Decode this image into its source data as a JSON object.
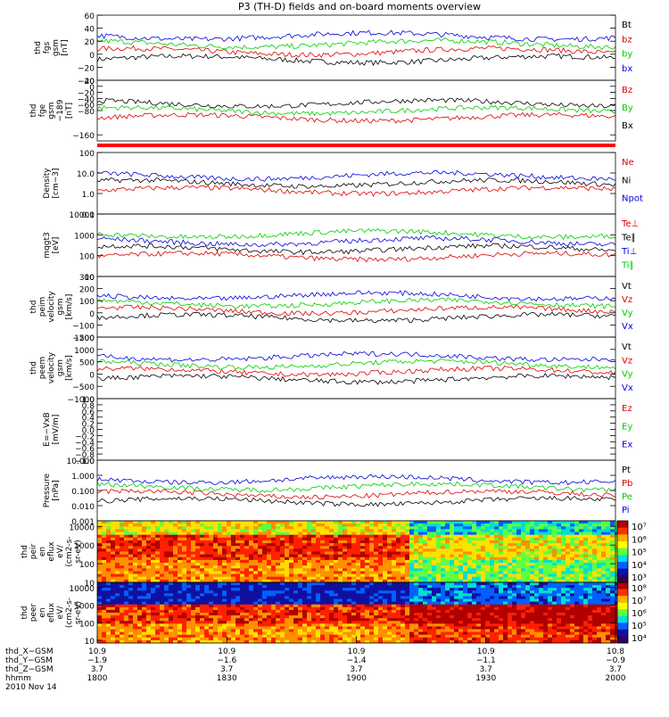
{
  "title": "P3 (TH-D) fields and on-board moments overview",
  "chart_data": [
    {
      "type": "line",
      "ylabel": [
        "thd",
        "fgs",
        "gsm",
        "[nT]"
      ],
      "ylim": [
        -40,
        60
      ],
      "ticks": [
        {
          "v": 60,
          "t": "60"
        },
        {
          "v": 40,
          "t": "40"
        },
        {
          "v": 20,
          "t": "20"
        },
        {
          "v": 0,
          "t": "0"
        },
        {
          "v": -20,
          "t": "−20"
        },
        {
          "v": -40,
          "t": "−40"
        }
      ],
      "series": [
        {
          "name": "Bt",
          "color": "#000000"
        },
        {
          "name": "bz",
          "color": "#dd0000"
        },
        {
          "name": "by",
          "color": "#00cc00"
        },
        {
          "name": "bx",
          "color": "#0000dd"
        }
      ]
    },
    {
      "type": "line",
      "ylabel": [
        "thd",
        "fge",
        "gsm",
        "−189",
        "[nT]"
      ],
      "ylim": [
        -180,
        20
      ],
      "ticks": [
        {
          "v": 20,
          "t": "20"
        },
        {
          "v": 0,
          "t": "0"
        },
        {
          "v": -20,
          "t": "−20"
        },
        {
          "v": -40,
          "t": "−40"
        },
        {
          "v": -60,
          "t": "−60"
        },
        {
          "v": -80,
          "t": "−80"
        },
        {
          "v": -160,
          "t": "−160"
        }
      ],
      "series": [
        {
          "name": "Bz",
          "color": "#dd0000"
        },
        {
          "name": "By",
          "color": "#00cc00"
        },
        {
          "name": "Bx",
          "color": "#000000"
        }
      ]
    },
    {
      "type": "line",
      "log": true,
      "ylabel": [
        "Density",
        "[cm−3]"
      ],
      "ylim": [
        0.1,
        100
      ],
      "ticks": [
        {
          "v": 100,
          "t": "100"
        },
        {
          "v": 10,
          "t": "10.0"
        },
        {
          "v": 1,
          "t": "1.0"
        },
        {
          "v": 0.1,
          "t": "0.1"
        }
      ],
      "series": [
        {
          "name": "Ne",
          "color": "#dd0000"
        },
        {
          "name": "Ni",
          "color": "#000000"
        },
        {
          "name": "Npot",
          "color": "#0000dd"
        }
      ]
    },
    {
      "type": "line",
      "log": true,
      "ylabel": [
        "mqgt3",
        "[eV]"
      ],
      "ylim": [
        10,
        10000
      ],
      "ticks": [
        {
          "v": 10000,
          "t": "10000"
        },
        {
          "v": 1000,
          "t": "1000"
        },
        {
          "v": 100,
          "t": "100"
        },
        {
          "v": 10,
          "t": "10"
        }
      ],
      "series": [
        {
          "name": "Te⊥",
          "color": "#dd0000"
        },
        {
          "name": "Te∥",
          "color": "#000000"
        },
        {
          "name": "Ti⊥",
          "color": "#0000dd"
        },
        {
          "name": "Ti∥",
          "color": "#00cc00"
        }
      ]
    },
    {
      "type": "line",
      "ylabel": [
        "thd",
        "peim",
        "velocity",
        "gsm",
        "[km/s]"
      ],
      "ylim": [
        -200,
        300
      ],
      "ticks": [
        {
          "v": 300,
          "t": "300"
        },
        {
          "v": 200,
          "t": "200"
        },
        {
          "v": 100,
          "t": "100"
        },
        {
          "v": 0,
          "t": "0"
        },
        {
          "v": -100,
          "t": "−100"
        },
        {
          "v": -200,
          "t": "−200"
        }
      ],
      "series": [
        {
          "name": "Vt",
          "color": "#000000"
        },
        {
          "name": "Vz",
          "color": "#dd0000"
        },
        {
          "name": "Vy",
          "color": "#00cc00"
        },
        {
          "name": "Vx",
          "color": "#0000dd"
        }
      ]
    },
    {
      "type": "line",
      "ylabel": [
        "thd",
        "peem",
        "velocity",
        "gsm",
        "[km/s]"
      ],
      "ylim": [
        -1000,
        1500
      ],
      "ticks": [
        {
          "v": 1500,
          "t": "1500"
        },
        {
          "v": 1000,
          "t": "1000"
        },
        {
          "v": 500,
          "t": "500"
        },
        {
          "v": 0,
          "t": "0"
        },
        {
          "v": -500,
          "t": "−500"
        },
        {
          "v": -1000,
          "t": "−1000"
        }
      ],
      "series": [
        {
          "name": "Vt",
          "color": "#000000"
        },
        {
          "name": "Vz",
          "color": "#dd0000"
        },
        {
          "name": "Vy",
          "color": "#00cc00"
        },
        {
          "name": "Vx",
          "color": "#0000dd"
        }
      ]
    },
    {
      "type": "line",
      "ylabel": [
        "E=−VxB",
        "[mV/m]"
      ],
      "ylim": [
        -1,
        1
      ],
      "ticks": [
        {
          "v": 1,
          "t": "1.0"
        },
        {
          "v": 0.8,
          "t": "0.8"
        },
        {
          "v": 0.6,
          "t": "0.6"
        },
        {
          "v": 0.4,
          "t": "0.4"
        },
        {
          "v": 0.2,
          "t": "0.2"
        },
        {
          "v": 0,
          "t": "0.0"
        },
        {
          "v": -0.2,
          "t": "−0.2"
        },
        {
          "v": -0.4,
          "t": "−0.4"
        },
        {
          "v": -0.6,
          "t": "−0.6"
        },
        {
          "v": -0.8,
          "t": "−0.8"
        },
        {
          "v": -1,
          "t": "−1.0"
        }
      ],
      "series": [
        {
          "name": "Ez",
          "color": "#dd0000"
        },
        {
          "name": "Ey",
          "color": "#00cc00"
        },
        {
          "name": "Ex",
          "color": "#0000dd"
        }
      ]
    },
    {
      "type": "line",
      "log": true,
      "ylabel": [
        "Pressure",
        "[nPa]"
      ],
      "ylim": [
        0.001,
        10
      ],
      "ticks": [
        {
          "v": 10,
          "t": "10.000"
        },
        {
          "v": 1,
          "t": "1.000"
        },
        {
          "v": 0.1,
          "t": "0.100"
        },
        {
          "v": 0.01,
          "t": "0.010"
        },
        {
          "v": 0.001,
          "t": "0.001"
        }
      ],
      "series": [
        {
          "name": "Pt",
          "color": "#000000"
        },
        {
          "name": "Pb",
          "color": "#dd0000"
        },
        {
          "name": "Pe",
          "color": "#00cc00"
        },
        {
          "name": "Pi",
          "color": "#0000dd"
        }
      ]
    },
    {
      "type": "heatmap",
      "log": true,
      "ylabel": [
        "thd",
        "peir",
        "en",
        "eflux",
        "eV/",
        "(cm2-s-",
        "sr-eV)"
      ],
      "ylim": [
        10,
        20000
      ],
      "ticks": [
        {
          "v": 10000,
          "t": "10000"
        },
        {
          "v": 1000,
          "t": "1000"
        },
        {
          "v": 100,
          "t": "100"
        },
        {
          "v": 10,
          "t": "10"
        }
      ],
      "colorbar": [
        "10⁷",
        "10⁶",
        "10⁵",
        "10⁴",
        "10³"
      ]
    },
    {
      "type": "heatmap",
      "log": true,
      "ylabel": [
        "thd",
        "peer",
        "en",
        "eflux",
        "eV/",
        "(cm2-s-",
        "sr-eV)"
      ],
      "ylim": [
        7,
        20000
      ],
      "ticks": [
        {
          "v": 10000,
          "t": "10000"
        },
        {
          "v": 1000,
          "t": "1000"
        },
        {
          "v": 100,
          "t": "100"
        },
        {
          "v": 10,
          "t": "10"
        }
      ],
      "colorbar": [
        "10⁸",
        "10⁷",
        "10⁶",
        "10⁵",
        "10⁴"
      ]
    }
  ],
  "x_axis": {
    "rows": [
      "thd_X−GSM",
      "thd_Y−GSM",
      "thd_Z−GSM",
      "hhmm",
      "2010 Nov 14"
    ],
    "ticks": [
      {
        "x": "1800",
        "X": "10.9",
        "Y": "−1.9",
        "Z": "3.7"
      },
      {
        "x": "1830",
        "X": "10.9",
        "Y": "−1.6",
        "Z": "3.7"
      },
      {
        "x": "1900",
        "X": "10.9",
        "Y": "−1.4",
        "Z": "3.7"
      },
      {
        "x": "1930",
        "X": "10.9",
        "Y": "−1.1",
        "Z": "3.7"
      },
      {
        "x": "2000",
        "X": "10.8",
        "Y": "−0.9",
        "Z": "3.7"
      }
    ]
  }
}
